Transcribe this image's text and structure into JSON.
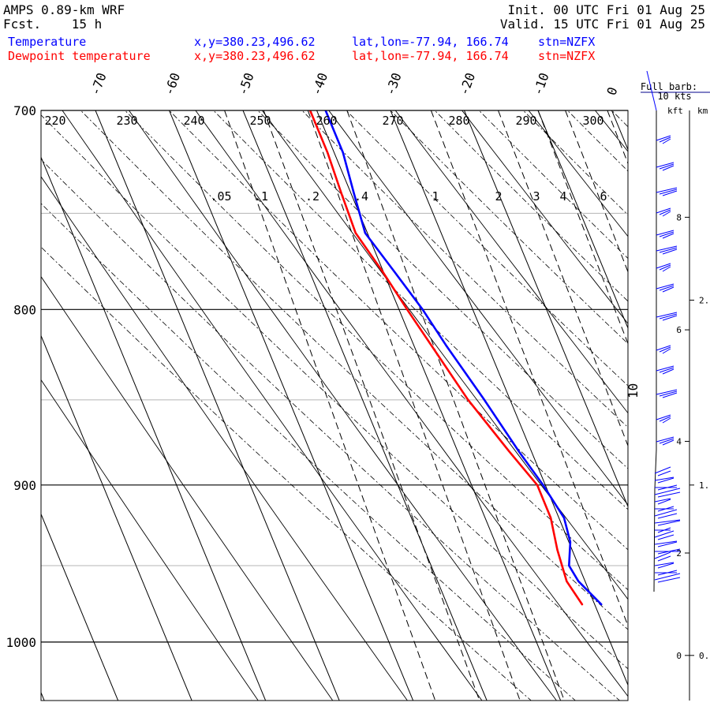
{
  "header": {
    "model": "AMPS 0.89-km WRF",
    "fcst": "Fcst.    15 h",
    "init": "Init. 00 UTC Fri 01 Aug 25",
    "valid": "Valid. 15 UTC Fri 01 Aug 25",
    "temp_label": "Temperature",
    "dew_label": "Dewpoint temperature",
    "xy": "x,y=380.23,496.62",
    "latlon": "lat,lon=-77.94, 166.74",
    "stn": "stn=NZFX"
  },
  "colors": {
    "temperature": "#0000ff",
    "dewpoint": "#ff0000",
    "axes": "#000000",
    "minor_isobar": "#b4b4b4"
  },
  "wind_panel": {
    "full_barb_label": "Full barb:",
    "full_barb_value": "10 kts",
    "kft_label": "kft",
    "km_label": "km"
  },
  "chart_data": {
    "type": "skew-t",
    "pressure_axis": {
      "range": [
        700,
        1040
      ],
      "labels": [
        "700",
        "800",
        "900",
        "1000"
      ],
      "ticks": [
        700,
        800,
        900,
        1000
      ],
      "minor": [
        750,
        850,
        950
      ],
      "scale": "log"
    },
    "temperature_axis": {
      "labels": [
        "-70",
        "-60",
        "-50",
        "-40",
        "-30",
        "-20",
        "-10",
        "0"
      ],
      "values": [
        -70,
        -60,
        -50,
        -40,
        -30,
        -20,
        -10,
        0
      ]
    },
    "dry_adiabat_labels": [
      "220",
      "230",
      "240",
      "250",
      "260",
      "270",
      "280",
      "290",
      "300"
    ],
    "mixing_ratio_labels": [
      ".05",
      ".1",
      ".2",
      ".4",
      "1",
      "2",
      "3",
      "4",
      "6"
    ],
    "moist_adiabat_label": "10",
    "series": [
      {
        "name": "Temperature",
        "points": [
          {
            "p": 700,
            "t": -38.8
          },
          {
            "p": 720,
            "t": -38.8
          },
          {
            "p": 740,
            "t": -39.6
          },
          {
            "p": 760,
            "t": -40.3
          },
          {
            "p": 780,
            "t": -38.5
          },
          {
            "p": 800,
            "t": -36.8
          },
          {
            "p": 820,
            "t": -35.6
          },
          {
            "p": 850,
            "t": -33.5
          },
          {
            "p": 880,
            "t": -31.7
          },
          {
            "p": 900,
            "t": -30.3
          },
          {
            "p": 920,
            "t": -29.3
          },
          {
            "p": 935,
            "t": -29.8
          },
          {
            "p": 950,
            "t": -31.3
          },
          {
            "p": 960,
            "t": -30.9
          },
          {
            "p": 975,
            "t": -29.1
          }
        ]
      },
      {
        "name": "Dewpoint temperature",
        "points": [
          {
            "p": 700,
            "t": -40.9
          },
          {
            "p": 720,
            "t": -40.9
          },
          {
            "p": 740,
            "t": -41.3
          },
          {
            "p": 760,
            "t": -41.6
          },
          {
            "p": 780,
            "t": -40.1
          },
          {
            "p": 800,
            "t": -38.9
          },
          {
            "p": 820,
            "t": -37.6
          },
          {
            "p": 850,
            "t": -35.7
          },
          {
            "p": 880,
            "t": -33.0
          },
          {
            "p": 900,
            "t": -31.1
          },
          {
            "p": 920,
            "t": -31.1
          },
          {
            "p": 940,
            "t": -32.0
          },
          {
            "p": 960,
            "t": -32.5
          },
          {
            "p": 975,
            "t": -31.7
          }
        ]
      }
    ],
    "height_scale": {
      "kft": [
        {
          "label": "8",
          "p": 752
        },
        {
          "label": "6",
          "p": 811
        },
        {
          "label": "4",
          "p": 874
        },
        {
          "label": "2",
          "p": 942
        },
        {
          "label": "0",
          "p": 1009
        }
      ],
      "km": [
        {
          "label": "2.",
          "p": 795
        },
        {
          "label": "1.",
          "p": 900
        },
        {
          "label": "0.",
          "p": 1009
        }
      ]
    }
  }
}
